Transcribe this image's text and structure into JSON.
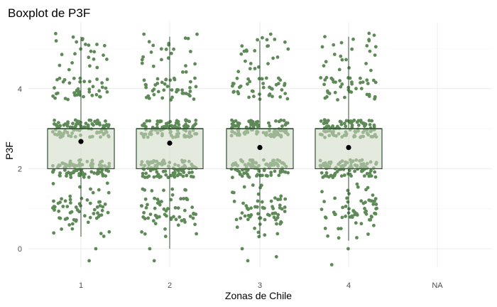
{
  "chart_data": {
    "type": "boxplot",
    "title": "Boxplot de P3F",
    "xlabel": "Zonas de Chile",
    "ylabel": "P3F",
    "categories": [
      "1",
      "2",
      "3",
      "4",
      "NA"
    ],
    "y_ticks": [
      0,
      2,
      4
    ],
    "ylim": [
      -0.45,
      5.55
    ],
    "grid": true,
    "legend": "none",
    "colors": {
      "box_fill": "#d0d9c4",
      "box_border": "#2f5233",
      "jitter_points": "#5e8a57",
      "mean_marker": "#000000",
      "grid": "#ebebeb"
    },
    "boxes": [
      {
        "category": "1",
        "q1": 2,
        "median": 3,
        "q3": 3,
        "whisker_low": 0.3,
        "whisker_high": 5.3,
        "mean": 2.68
      },
      {
        "category": "2",
        "q1": 2,
        "median": 3,
        "q3": 3,
        "whisker_low": 0,
        "whisker_high": 5.3,
        "mean": 2.64
      },
      {
        "category": "3",
        "q1": 2,
        "median": 3,
        "q3": 3,
        "whisker_low": 0.3,
        "whisker_high": 5.2,
        "mean": 2.53
      },
      {
        "category": "4",
        "q1": 2,
        "median": 3,
        "q3": 3,
        "whisker_low": 0.2,
        "whisker_high": 5.3,
        "mean": 2.53
      }
    ],
    "outliers": [
      {
        "category": "1",
        "values": [
          -0.3,
          0
        ]
      },
      {
        "category": "2",
        "values": [
          -0.3,
          0
        ]
      },
      {
        "category": "3",
        "values": [
          -0.3,
          -0.2,
          0
        ]
      },
      {
        "category": "4",
        "values": [
          -0.4,
          0
        ]
      }
    ]
  }
}
